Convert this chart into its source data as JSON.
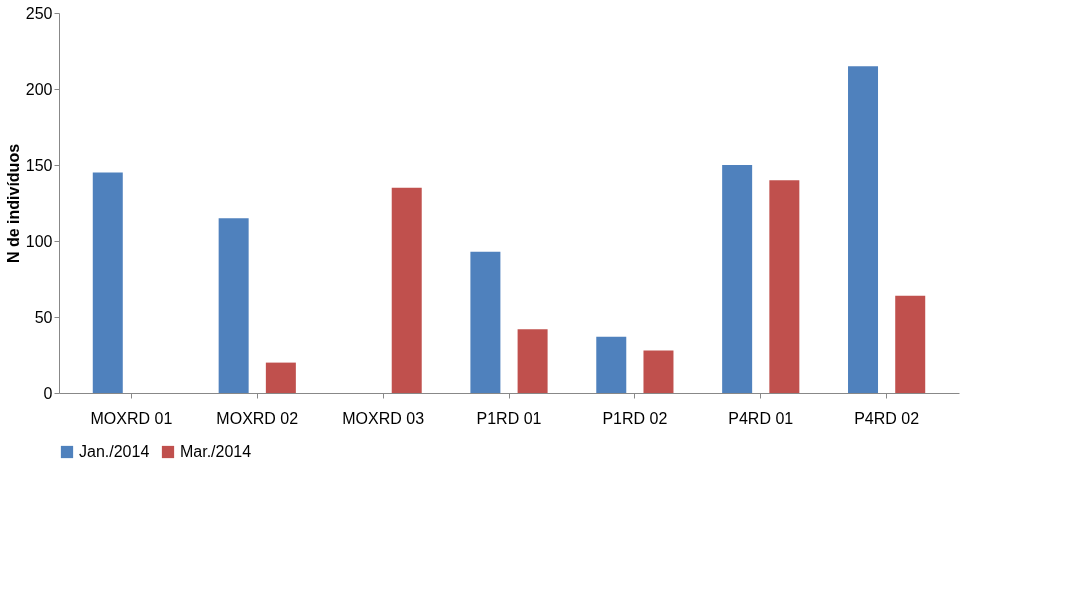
{
  "chart_data": {
    "type": "bar",
    "ylabel": "N de indivíduos",
    "categories": [
      "MOXRD 01",
      "MOXRD 02",
      "MOXRD 03",
      "P1RD 01",
      "P1RD 02",
      "P4RD 01",
      "P4RD 02"
    ],
    "series": [
      {
        "name": "Jan./2014",
        "color": "#4f81bd",
        "values": [
          145,
          115,
          0,
          93,
          37,
          150,
          215
        ]
      },
      {
        "name": "Mar./2014",
        "color": "#c0504d",
        "values": [
          null,
          20,
          135,
          42,
          28,
          140,
          64
        ]
      }
    ],
    "ylim": [
      0,
      250
    ],
    "yticks": [
      0,
      50,
      100,
      150,
      200,
      250
    ],
    "grid": false,
    "legend": "bottom"
  }
}
